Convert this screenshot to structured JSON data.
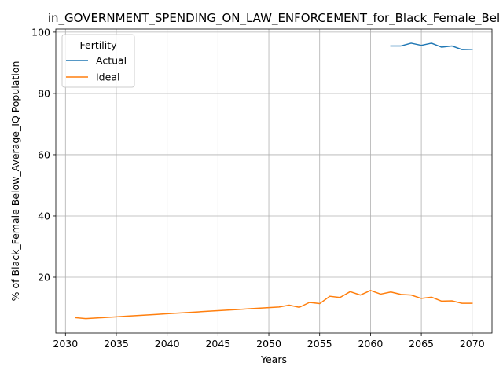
{
  "chart_data": {
    "type": "line",
    "title": "in_GOVERNMENT_SPENDING_ON_LAW_ENFORCEMENT_for_Black_Female_Bel",
    "xlabel": "Years",
    "ylabel": "% of Black_Female Below_Average_IQ Population",
    "xlim": [
      2029.05,
      2071.95
    ],
    "ylim": [
      1.8,
      101
    ],
    "xticks": [
      2030,
      2035,
      2040,
      2045,
      2050,
      2055,
      2060,
      2065,
      2070
    ],
    "yticks": [
      20,
      40,
      60,
      80,
      100
    ],
    "grid": true,
    "legend": {
      "title": "Fertility",
      "placement": "top-left"
    },
    "series": [
      {
        "name": "Actual",
        "color": "#1f77b4",
        "x": [
          2062,
          2063,
          2064,
          2065,
          2066,
          2067,
          2068,
          2069,
          2070
        ],
        "y": [
          95.5,
          95.5,
          96.4,
          95.7,
          96.4,
          95.1,
          95.5,
          94.3,
          94.4
        ]
      },
      {
        "name": "Ideal",
        "color": "#ff7f0e",
        "x": [
          2031,
          2032,
          2033,
          2034,
          2035,
          2036,
          2037,
          2038,
          2039,
          2040,
          2041,
          2042,
          2043,
          2044,
          2045,
          2046,
          2047,
          2048,
          2049,
          2050,
          2051,
          2052,
          2053,
          2054,
          2055,
          2056,
          2057,
          2058,
          2059,
          2060,
          2061,
          2062,
          2063,
          2064,
          2065,
          2066,
          2067,
          2068,
          2069,
          2070
        ],
        "y": [
          6.8,
          6.5,
          6.7,
          6.9,
          7.1,
          7.3,
          7.5,
          7.7,
          7.9,
          8.1,
          8.3,
          8.5,
          8.7,
          8.9,
          9.1,
          9.3,
          9.5,
          9.7,
          9.9,
          10.1,
          10.3,
          10.9,
          10.2,
          11.8,
          11.4,
          13.8,
          13.4,
          15.3,
          14.2,
          15.7,
          14.5,
          15.2,
          14.4,
          14.2,
          13.1,
          13.5,
          12.2,
          12.3,
          11.5,
          11.5
        ]
      }
    ]
  }
}
